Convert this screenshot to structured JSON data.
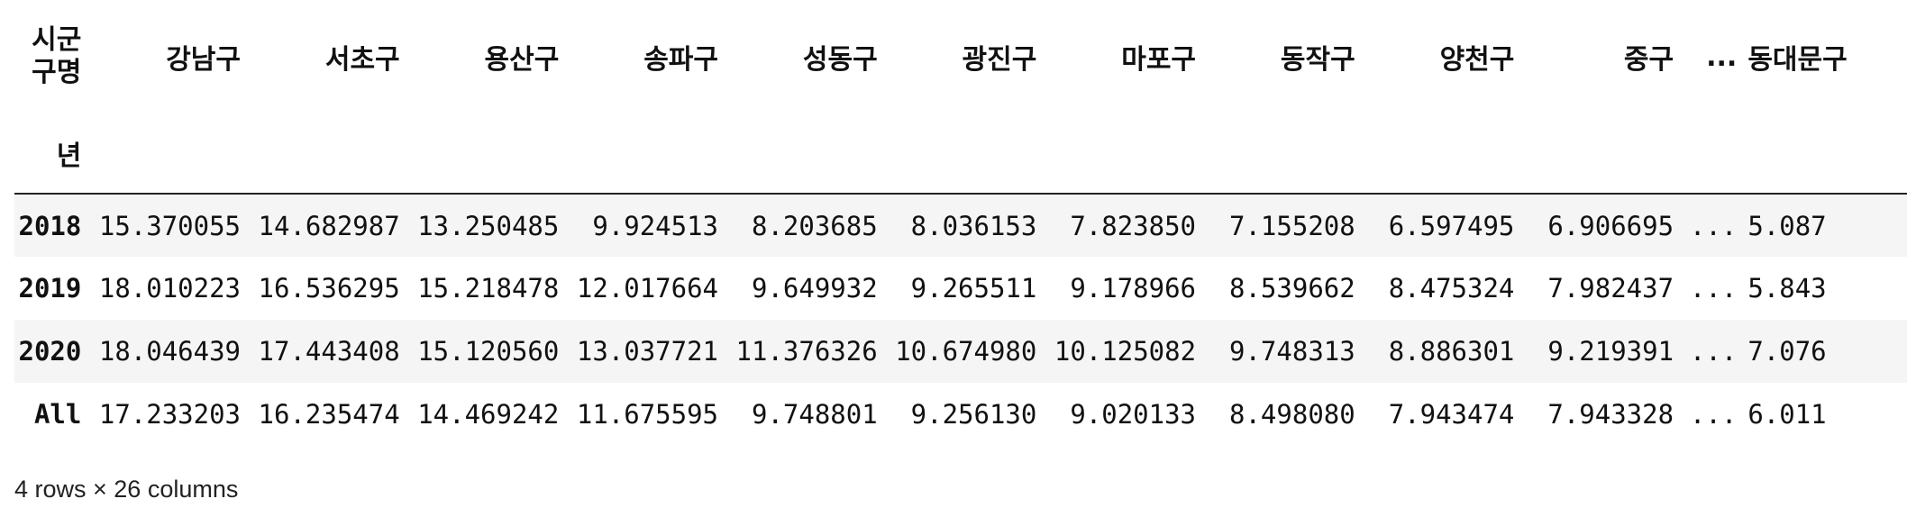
{
  "table": {
    "columns_axis_name": "시군구명",
    "columns_axis_name_lines": [
      "시군",
      "구명"
    ],
    "index_name": "년",
    "columns": [
      "강남구",
      "서초구",
      "용산구",
      "송파구",
      "성동구",
      "광진구",
      "마포구",
      "동작구",
      "양천구",
      "중구",
      "...",
      "동대문구"
    ],
    "rows": [
      {
        "index": "2018",
        "values": [
          "15.370055",
          "14.682987",
          "13.250485",
          "9.924513",
          "8.203685",
          "8.036153",
          "7.823850",
          "7.155208",
          "6.597495",
          "6.906695",
          "...",
          "5.087"
        ]
      },
      {
        "index": "2019",
        "values": [
          "18.010223",
          "16.536295",
          "15.218478",
          "12.017664",
          "9.649932",
          "9.265511",
          "9.178966",
          "8.539662",
          "8.475324",
          "7.982437",
          "...",
          "5.843"
        ]
      },
      {
        "index": "2020",
        "values": [
          "18.046439",
          "17.443408",
          "15.120560",
          "13.037721",
          "11.376326",
          "10.674980",
          "10.125082",
          "9.748313",
          "8.886301",
          "9.219391",
          "...",
          "7.076"
        ]
      },
      {
        "index": "All",
        "values": [
          "17.233203",
          "16.235474",
          "14.469242",
          "11.675595",
          "9.748801",
          "9.256130",
          "9.020133",
          "8.498080",
          "7.943474",
          "7.943328",
          "...",
          "6.011"
        ]
      }
    ]
  },
  "footer": {
    "shape_text": "4 rows × 26 columns"
  }
}
